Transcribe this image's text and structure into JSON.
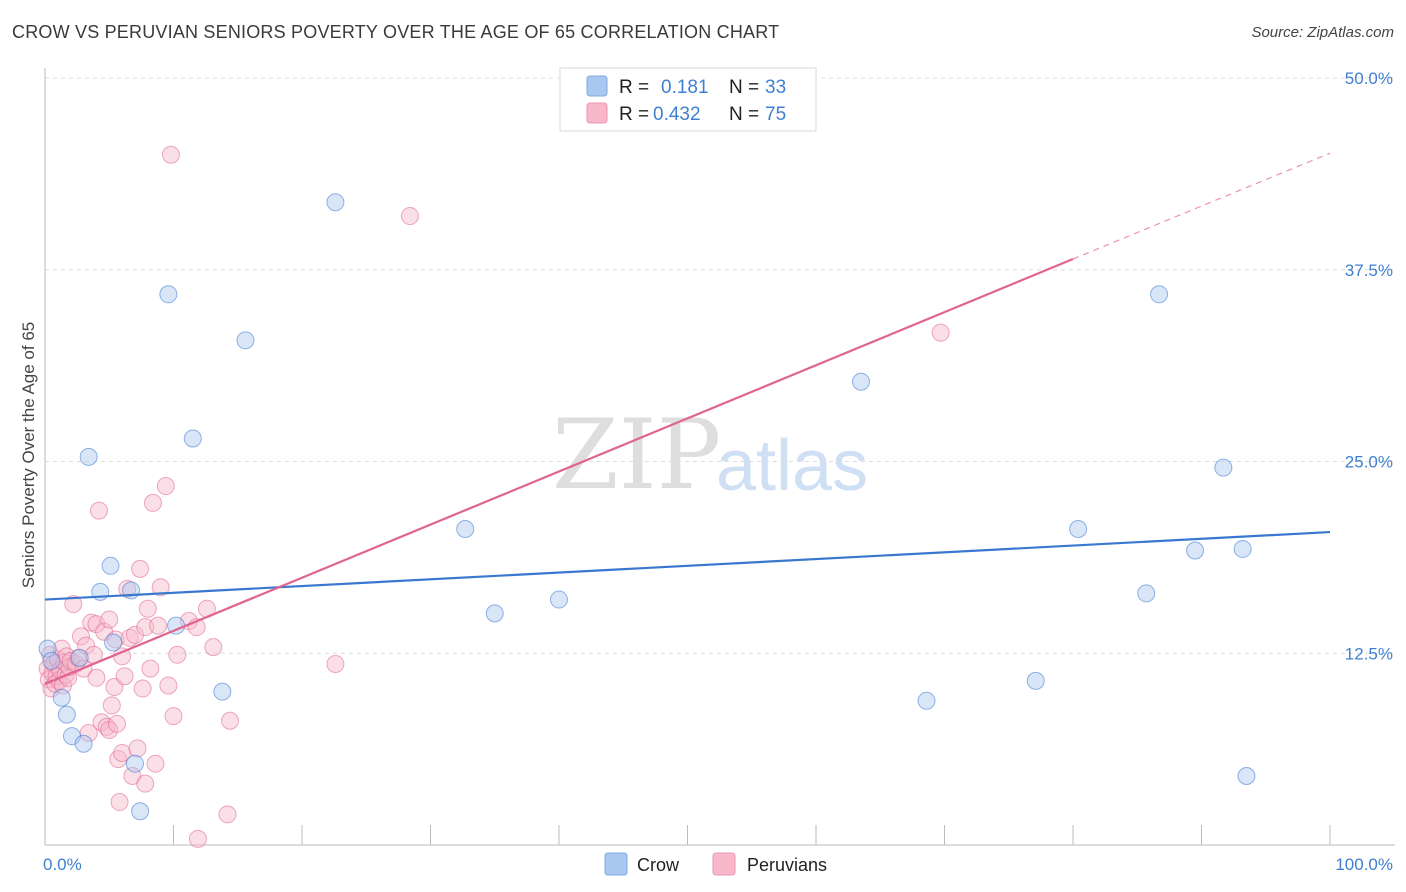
{
  "title": "CROW VS PERUVIAN SENIORS POVERTY OVER THE AGE OF 65 CORRELATION CHART",
  "source": "Source: ZipAtlas.com",
  "watermark": {
    "zip": "ZIP",
    "atlas": "atlas"
  },
  "legend": {
    "rows": [
      {
        "r_label": "R =",
        "r_value": "0.181",
        "n_label": "N =",
        "n_value": "33",
        "color": "#a8c8f0"
      },
      {
        "r_label": "R =",
        "r_value": "0.432",
        "n_label": "N =",
        "n_value": "75",
        "color": "#f6b8ca"
      }
    ]
  },
  "bottom_legend": [
    {
      "label": "Crow",
      "color": "#a8c8f0"
    },
    {
      "label": "Peruvians",
      "color": "#f6b8ca"
    }
  ],
  "chart_data": {
    "type": "scatter",
    "title": "CROW VS PERUVIAN SENIORS POVERTY OVER THE AGE OF 65 CORRELATION CHART",
    "xlabel": "",
    "ylabel": "Seniors Poverty Over the Age of 65",
    "xlim": [
      0,
      100
    ],
    "ylim": [
      0,
      50
    ],
    "x_tick_labels": [
      "0.0%",
      "100.0%"
    ],
    "y_ticks": [
      12.5,
      25.0,
      37.5,
      50.0
    ],
    "y_tick_labels": [
      "12.5%",
      "25.0%",
      "37.5%",
      "50.0%"
    ],
    "grid": true,
    "series": [
      {
        "name": "Crow",
        "color": "#3a78d0",
        "fill": "#a8c8f0",
        "trend": {
          "x": [
            0,
            100
          ],
          "y": [
            16.0,
            20.4
          ]
        },
        "points": [
          [
            0.2,
            12.8
          ],
          [
            0.5,
            12.0
          ],
          [
            1.3,
            9.6
          ],
          [
            1.7,
            8.5
          ],
          [
            2.1,
            7.1
          ],
          [
            2.7,
            12.2
          ],
          [
            3.0,
            6.6
          ],
          [
            3.4,
            25.3
          ],
          [
            4.3,
            16.5
          ],
          [
            5.1,
            18.2
          ],
          [
            5.3,
            13.2
          ],
          [
            6.7,
            16.6
          ],
          [
            7.0,
            5.3
          ],
          [
            7.4,
            2.2
          ],
          [
            9.6,
            35.9
          ],
          [
            10.2,
            14.3
          ],
          [
            11.5,
            26.5
          ],
          [
            13.8,
            10.0
          ],
          [
            15.6,
            32.9
          ],
          [
            22.6,
            41.9
          ],
          [
            32.7,
            20.6
          ],
          [
            35.0,
            15.1
          ],
          [
            40.0,
            16.0
          ],
          [
            63.5,
            30.2
          ],
          [
            68.6,
            9.4
          ],
          [
            77.1,
            10.7
          ],
          [
            80.4,
            20.6
          ],
          [
            85.7,
            16.4
          ],
          [
            86.7,
            35.9
          ],
          [
            89.5,
            19.2
          ],
          [
            93.2,
            19.3
          ],
          [
            91.7,
            24.6
          ],
          [
            93.5,
            4.5
          ]
        ]
      },
      {
        "name": "Peruvians",
        "color": "#e06490",
        "fill": "#f6b8ca",
        "trend": {
          "x": [
            0,
            80
          ],
          "y": [
            10.5,
            38.2
          ]
        },
        "trend_dashed": {
          "x": [
            80,
            100
          ],
          "y": [
            38.2,
            45.1
          ]
        },
        "points": [
          [
            0.2,
            11.5
          ],
          [
            0.3,
            10.8
          ],
          [
            0.4,
            12.4
          ],
          [
            0.5,
            10.2
          ],
          [
            0.6,
            11.2
          ],
          [
            0.7,
            11.8
          ],
          [
            0.8,
            10.5
          ],
          [
            0.9,
            11.0
          ],
          [
            1.0,
            12.1
          ],
          [
            1.1,
            10.7
          ],
          [
            1.2,
            11.4
          ],
          [
            1.3,
            12.8
          ],
          [
            1.4,
            10.4
          ],
          [
            1.5,
            11.9
          ],
          [
            1.6,
            11.1
          ],
          [
            1.7,
            12.3
          ],
          [
            1.8,
            10.9
          ],
          [
            1.9,
            11.6
          ],
          [
            2.0,
            12.0
          ],
          [
            2.2,
            15.7
          ],
          [
            2.4,
            11.8
          ],
          [
            2.6,
            12.2
          ],
          [
            2.8,
            13.6
          ],
          [
            3.0,
            11.5
          ],
          [
            3.2,
            13.0
          ],
          [
            3.4,
            7.3
          ],
          [
            3.6,
            14.5
          ],
          [
            3.8,
            12.4
          ],
          [
            4.0,
            14.4
          ],
          [
            4.0,
            10.9
          ],
          [
            4.2,
            21.8
          ],
          [
            4.4,
            8.0
          ],
          [
            4.6,
            13.9
          ],
          [
            4.8,
            7.7
          ],
          [
            5.0,
            14.7
          ],
          [
            5.0,
            7.5
          ],
          [
            5.2,
            9.1
          ],
          [
            5.4,
            10.3
          ],
          [
            5.5,
            13.4
          ],
          [
            5.6,
            7.9
          ],
          [
            5.7,
            5.6
          ],
          [
            5.8,
            2.8
          ],
          [
            6.0,
            12.3
          ],
          [
            6.0,
            6.0
          ],
          [
            6.2,
            11.0
          ],
          [
            6.4,
            16.7
          ],
          [
            6.6,
            13.5
          ],
          [
            6.8,
            4.5
          ],
          [
            7.0,
            13.7
          ],
          [
            7.2,
            6.3
          ],
          [
            7.4,
            18.0
          ],
          [
            7.6,
            10.2
          ],
          [
            7.8,
            4.0
          ],
          [
            7.8,
            14.2
          ],
          [
            8.0,
            15.4
          ],
          [
            8.2,
            11.5
          ],
          [
            8.4,
            22.3
          ],
          [
            8.6,
            5.3
          ],
          [
            8.8,
            14.3
          ],
          [
            9.0,
            16.8
          ],
          [
            9.4,
            23.4
          ],
          [
            9.6,
            10.4
          ],
          [
            9.8,
            45.0
          ],
          [
            10.0,
            8.4
          ],
          [
            10.3,
            12.4
          ],
          [
            11.2,
            14.6
          ],
          [
            11.8,
            14.2
          ],
          [
            11.9,
            0.4
          ],
          [
            12.6,
            15.4
          ],
          [
            13.1,
            12.9
          ],
          [
            14.2,
            2.0
          ],
          [
            14.4,
            8.1
          ],
          [
            22.6,
            11.8
          ],
          [
            28.4,
            41.0
          ],
          [
            69.7,
            33.4
          ]
        ]
      }
    ]
  }
}
